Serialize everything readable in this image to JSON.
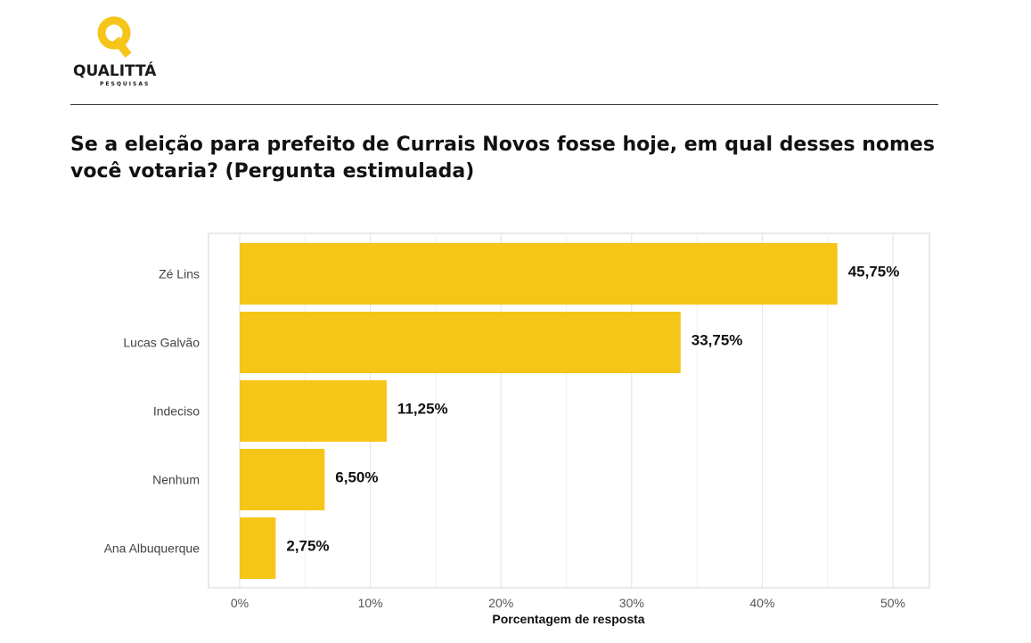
{
  "brand": {
    "name": "QUALITTÁ",
    "tagline": "PESQUISAS",
    "colors": {
      "accent": "#F5C518",
      "text": "#1a1a1a"
    }
  },
  "question": {
    "line1": "Se a eleição para prefeito de Currais Novos fosse hoje, em qual desses nomes",
    "line2": "você votaria? (Pergunta estimulada)"
  },
  "chart_data": {
    "type": "bar",
    "orientation": "horizontal",
    "categories": [
      "Zé Lins",
      "Lucas Galvão",
      "Indeciso",
      "Nenhum",
      "Ana Albuquerque"
    ],
    "values": [
      45.75,
      33.75,
      11.25,
      6.5,
      2.75
    ],
    "value_labels": [
      "45,75%",
      "33,75%",
      "11,25%",
      "6,50%",
      "2,75%"
    ],
    "xlabel": "Porcentagem de resposta",
    "xlim": [
      0,
      50
    ],
    "xticks": [
      0,
      10,
      20,
      30,
      40,
      50
    ],
    "xtick_labels": [
      "0%",
      "10%",
      "20%",
      "30%",
      "40%",
      "50%"
    ],
    "grid": true,
    "bar_color": "#F5C518"
  }
}
